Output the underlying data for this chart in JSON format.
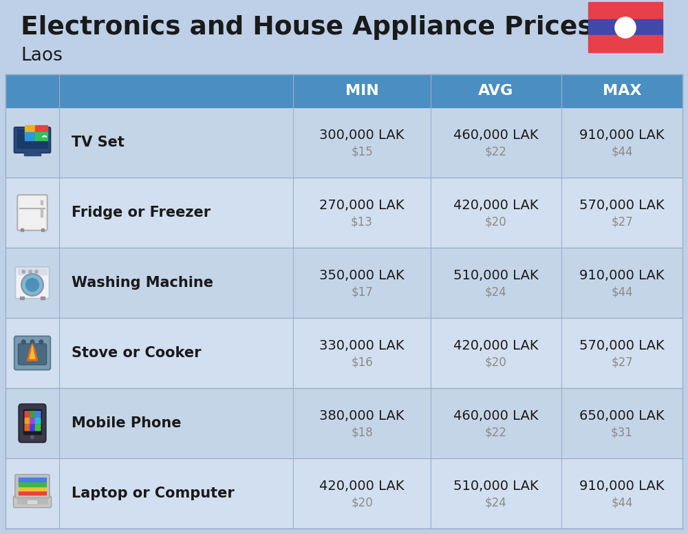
{
  "title_main": "Electronics and House Appliance Prices",
  "subtitle": "Laos",
  "background_color": "#bdd0e8",
  "header_color": "#4a8ec2",
  "header_text_color": "#ffffff",
  "col_headers": [
    "MIN",
    "AVG",
    "MAX"
  ],
  "items": [
    {
      "name": "TV Set",
      "icon": "tv",
      "min_lak": "300,000 LAK",
      "min_usd": "$15",
      "avg_lak": "460,000 LAK",
      "avg_usd": "$22",
      "max_lak": "910,000 LAK",
      "max_usd": "$44"
    },
    {
      "name": "Fridge or Freezer",
      "icon": "fridge",
      "min_lak": "270,000 LAK",
      "min_usd": "$13",
      "avg_lak": "420,000 LAK",
      "avg_usd": "$20",
      "max_lak": "570,000 LAK",
      "max_usd": "$27"
    },
    {
      "name": "Washing Machine",
      "icon": "washing",
      "min_lak": "350,000 LAK",
      "min_usd": "$17",
      "avg_lak": "510,000 LAK",
      "avg_usd": "$24",
      "max_lak": "910,000 LAK",
      "max_usd": "$44"
    },
    {
      "name": "Stove or Cooker",
      "icon": "stove",
      "min_lak": "330,000 LAK",
      "min_usd": "$16",
      "avg_lak": "420,000 LAK",
      "avg_usd": "$20",
      "max_lak": "570,000 LAK",
      "max_usd": "$27"
    },
    {
      "name": "Mobile Phone",
      "icon": "phone",
      "min_lak": "380,000 LAK",
      "min_usd": "$18",
      "avg_lak": "460,000 LAK",
      "avg_usd": "$22",
      "max_lak": "650,000 LAK",
      "max_usd": "$31"
    },
    {
      "name": "Laptop or Computer",
      "icon": "laptop",
      "min_lak": "420,000 LAK",
      "min_usd": "$20",
      "avg_lak": "510,000 LAK",
      "avg_usd": "$24",
      "max_lak": "910,000 LAK",
      "max_usd": "$44"
    }
  ],
  "divider_color": "#9ab0c8",
  "text_color_main": "#1a1a1a",
  "text_color_usd": "#8a8a8a",
  "flag_red": "#e8404a",
  "flag_blue": "#4048a8",
  "flag_white": "#ffffff",
  "row_color_odd": "#c5d5e8",
  "row_color_even": "#d2dff0"
}
